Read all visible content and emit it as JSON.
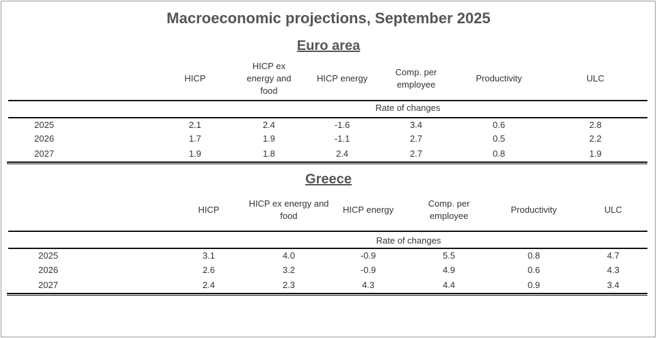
{
  "title": "Macroeconomic projections, September 2025",
  "rate_label": "Rate of changes",
  "euro_area": {
    "heading": "Euro area",
    "columns": [
      "HICP",
      "HICP ex energy and food",
      "HICP energy",
      "Comp. per employee",
      "Productivity",
      "ULC"
    ],
    "rows": [
      {
        "year": "2025",
        "values": [
          "2.1",
          "2.4",
          "-1.6",
          "3.4",
          "0.6",
          "2.8"
        ]
      },
      {
        "year": "2026",
        "values": [
          "1.7",
          "1.9",
          "-1.1",
          "2.7",
          "0.5",
          "2.2"
        ]
      },
      {
        "year": "2027",
        "values": [
          "1.9",
          "1.8",
          "2.4",
          "2.7",
          "0.8",
          "1.9"
        ]
      }
    ]
  },
  "greece": {
    "heading": "Greece",
    "columns": [
      "HICP",
      "HICP ex energy and food",
      "HICP energy",
      "Comp. per employee",
      "Productivity",
      "ULC"
    ],
    "rows": [
      {
        "year": "2025",
        "values": [
          "3.1",
          "4.0",
          "-0.9",
          "5.5",
          "0.8",
          "4.7"
        ]
      },
      {
        "year": "2026",
        "values": [
          "2.6",
          "3.2",
          "-0.9",
          "4.9",
          "0.6",
          "4.3"
        ]
      },
      {
        "year": "2027",
        "values": [
          "2.4",
          "2.3",
          "4.3",
          "4.4",
          "0.9",
          "3.4"
        ]
      }
    ]
  }
}
